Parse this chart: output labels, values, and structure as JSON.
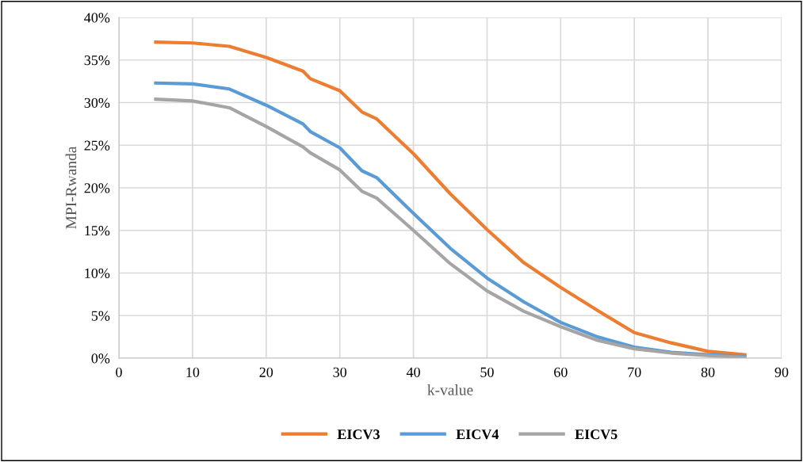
{
  "chart_data": {
    "type": "line",
    "xlabel": "k-value",
    "ylabel": "MPI-Rwanda",
    "x": [
      5,
      10,
      15,
      20,
      25,
      26,
      30,
      33,
      35,
      40,
      45,
      50,
      55,
      60,
      65,
      70,
      75,
      80,
      85
    ],
    "series": [
      {
        "name": "EICV3",
        "color": "#ed7d31",
        "values": [
          37.1,
          37.0,
          36.6,
          35.3,
          33.7,
          32.8,
          31.4,
          28.9,
          28.1,
          24.0,
          19.3,
          15.1,
          11.2,
          8.3,
          5.6,
          3.0,
          1.8,
          0.8,
          0.4
        ]
      },
      {
        "name": "EICV4",
        "color": "#5b9bd5",
        "values": [
          32.3,
          32.2,
          31.6,
          29.7,
          27.5,
          26.6,
          24.7,
          22.0,
          21.2,
          17.0,
          12.9,
          9.4,
          6.6,
          4.2,
          2.5,
          1.3,
          0.7,
          0.4,
          0.2
        ]
      },
      {
        "name": "EICV5",
        "color": "#a5a5a5",
        "values": [
          30.4,
          30.2,
          29.4,
          27.2,
          24.8,
          24.1,
          22.1,
          19.6,
          18.8,
          15.0,
          11.1,
          7.9,
          5.5,
          3.7,
          2.1,
          1.1,
          0.6,
          0.3,
          0.1
        ]
      }
    ],
    "xlim": [
      0,
      90
    ],
    "xticks": [
      0,
      10,
      20,
      30,
      40,
      50,
      60,
      70,
      80,
      90
    ],
    "ylim": [
      0,
      40
    ],
    "yticks": [
      {
        "value": 0,
        "label": "0%"
      },
      {
        "value": 5,
        "label": "5%"
      },
      {
        "value": 10,
        "label": "10%"
      },
      {
        "value": 15,
        "label": "15%"
      },
      {
        "value": 20,
        "label": "20%"
      },
      {
        "value": 25,
        "label": "25%"
      },
      {
        "value": 30,
        "label": "30%"
      },
      {
        "value": 35,
        "label": "35%"
      },
      {
        "value": 40,
        "label": "40%"
      }
    ],
    "grid": true,
    "legend": "bottom",
    "marker": "none",
    "line_style": "solid"
  }
}
